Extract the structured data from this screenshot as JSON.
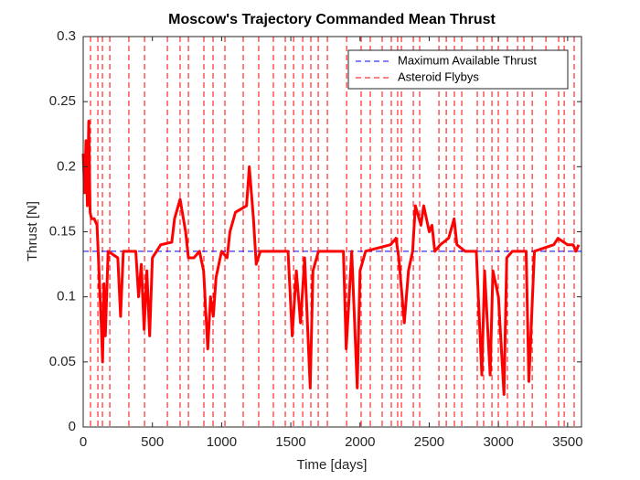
{
  "chart_data": {
    "type": "line",
    "title": "Moscow's Trajectory Commanded Mean Thrust",
    "xlabel": "Time [days]",
    "ylabel": "Thrust [N]",
    "xlim": [
      0,
      3600
    ],
    "xticks": [
      0,
      500,
      1000,
      1500,
      2000,
      2500,
      3000,
      3500
    ],
    "ylim": [
      0,
      0.3
    ],
    "yticks": [
      0,
      0.05,
      0.1,
      0.15,
      0.2,
      0.25,
      0.3
    ],
    "legend_location": "northeast",
    "series": [
      {
        "color": "#ff0000",
        "x": [
          0,
          10,
          20,
          30,
          40,
          50,
          60,
          80,
          100,
          110,
          130,
          140,
          150,
          160,
          180,
          250,
          270,
          290,
          380,
          400,
          420,
          440,
          460,
          480,
          500,
          560,
          640,
          660,
          700,
          740,
          760,
          800,
          840,
          870,
          900,
          920,
          940,
          960,
          1000,
          1040,
          1060,
          1100,
          1180,
          1200,
          1230,
          1250,
          1280,
          1480,
          1510,
          1540,
          1570,
          1600,
          1640,
          1660,
          1700,
          1880,
          1900,
          1940,
          1980,
          2000,
          2040,
          2220,
          2260,
          2280,
          2320,
          2350,
          2380,
          2400,
          2440,
          2460,
          2500,
          2520,
          2540,
          2580,
          2640,
          2680,
          2700,
          2760,
          2840,
          2880,
          2900,
          2940,
          2960,
          3000,
          3040,
          3060,
          3100,
          3200,
          3220,
          3260,
          3400,
          3430,
          3500,
          3540,
          3560,
          3580
        ],
        "values": [
          0.21,
          0.18,
          0.22,
          0.17,
          0.235,
          0.165,
          0.16,
          0.16,
          0.155,
          0.13,
          0.08,
          0.05,
          0.11,
          0.07,
          0.135,
          0.13,
          0.085,
          0.135,
          0.135,
          0.1,
          0.125,
          0.075,
          0.12,
          0.07,
          0.13,
          0.14,
          0.142,
          0.16,
          0.175,
          0.15,
          0.13,
          0.13,
          0.135,
          0.12,
          0.06,
          0.1,
          0.085,
          0.115,
          0.135,
          0.13,
          0.15,
          0.165,
          0.17,
          0.2,
          0.16,
          0.125,
          0.135,
          0.135,
          0.07,
          0.12,
          0.08,
          0.13,
          0.03,
          0.12,
          0.135,
          0.135,
          0.06,
          0.135,
          0.03,
          0.12,
          0.135,
          0.14,
          0.145,
          0.13,
          0.08,
          0.12,
          0.135,
          0.17,
          0.155,
          0.17,
          0.15,
          0.155,
          0.135,
          0.14,
          0.145,
          0.16,
          0.14,
          0.135,
          0.135,
          0.04,
          0.12,
          0.04,
          0.12,
          0.1,
          0.025,
          0.13,
          0.135,
          0.135,
          0.035,
          0.135,
          0.14,
          0.145,
          0.14,
          0.14,
          0.135,
          0.14
        ]
      }
    ],
    "max_thrust": {
      "name": "Maximum Available Thrust",
      "color": "#0000ff",
      "value": 0.135
    },
    "flybys": {
      "name": "Asteroid Flybys",
      "color": "#ff0000",
      "x": [
        53,
        106,
        139,
        192,
        330,
        443,
        608,
        700,
        760,
        872,
        938,
        1024,
        1156,
        1268,
        1374,
        1460,
        1520,
        1586,
        1645,
        1698,
        1764,
        1903,
        2008,
        2074,
        2160,
        2226,
        2272,
        2299,
        2385,
        2431,
        2570,
        2623,
        2682,
        2735,
        2847,
        2893,
        2953,
        2999,
        3065,
        3138,
        3184,
        3244,
        3343,
        3435,
        3475,
        3547
      ]
    }
  }
}
